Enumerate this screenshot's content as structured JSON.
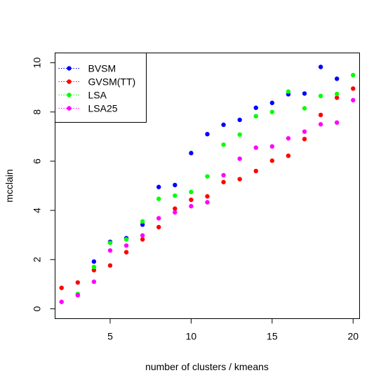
{
  "chart_data": {
    "type": "scatter",
    "xlabel": "number of clusters / kmeans",
    "ylabel": "mcclain",
    "xlim": [
      1.6,
      20.4
    ],
    "ylim": [
      -0.4,
      10.4
    ],
    "x_ticks": [
      5,
      10,
      15,
      20
    ],
    "y_ticks": [
      0,
      2,
      4,
      6,
      8,
      10
    ],
    "x_tick_labels": [
      "5",
      "10",
      "15",
      "20"
    ],
    "y_tick_labels": [
      "0",
      "2",
      "4",
      "6",
      "8",
      "10"
    ],
    "grid": false,
    "legend_position": "top-left",
    "x": [
      2,
      3,
      4,
      5,
      6,
      7,
      8,
      9,
      10,
      11,
      12,
      13,
      14,
      15,
      16,
      17,
      18,
      19,
      20
    ],
    "series": [
      {
        "name": "BVSM",
        "color": "#0000ff",
        "x": [
          4,
          5,
          6,
          7,
          8,
          9,
          10,
          11,
          12,
          13,
          14,
          15,
          16,
          17,
          18,
          19
        ],
        "values": [
          1.92,
          2.72,
          2.87,
          3.42,
          4.95,
          5.03,
          6.33,
          7.1,
          7.48,
          7.68,
          8.17,
          8.37,
          8.72,
          8.75,
          9.83,
          9.35
        ]
      },
      {
        "name": "GVSM(TT)",
        "color": "#ff0000",
        "x": [
          2,
          3,
          4,
          5,
          6,
          7,
          8,
          9,
          10,
          11,
          12,
          13,
          14,
          15,
          16,
          17,
          18,
          19,
          20
        ],
        "values": [
          0.85,
          1.07,
          1.57,
          1.76,
          2.3,
          2.82,
          3.32,
          4.07,
          4.43,
          4.57,
          5.15,
          5.27,
          5.6,
          6.02,
          6.22,
          6.9,
          7.88,
          8.58,
          8.95
        ]
      },
      {
        "name": "LSA",
        "color": "#00ff00",
        "x": [
          3,
          4,
          5,
          6,
          7,
          8,
          9,
          10,
          11,
          12,
          13,
          14,
          15,
          16,
          17,
          18,
          19,
          20
        ],
        "values": [
          0.6,
          1.7,
          2.68,
          2.82,
          3.55,
          4.47,
          4.6,
          4.75,
          5.38,
          6.67,
          7.08,
          7.83,
          8.0,
          8.83,
          8.15,
          8.65,
          8.73,
          9.5
        ]
      },
      {
        "name": "LSA25",
        "color": "#ff00ff",
        "x": [
          2,
          3,
          4,
          5,
          6,
          7,
          8,
          9,
          10,
          11,
          12,
          13,
          14,
          15,
          16,
          17,
          18,
          19,
          20
        ],
        "values": [
          0.28,
          0.55,
          1.1,
          2.37,
          2.57,
          2.98,
          3.68,
          3.92,
          4.17,
          4.33,
          5.43,
          6.1,
          6.55,
          6.6,
          6.93,
          7.2,
          7.5,
          7.57,
          8.48
        ]
      }
    ]
  }
}
